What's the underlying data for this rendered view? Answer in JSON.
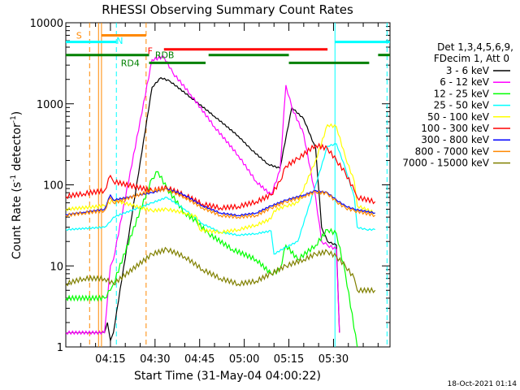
{
  "chart_data": {
    "type": "line",
    "title": "RHESSI Observing Summary Count Rates",
    "xlabel": "Start Time (31-May-04 04:00:22)",
    "ylabel": "Count Rate (s^-1 detector^-1)",
    "ylabel_main": "Count Rate (s",
    "ylabel_sup1": "-1",
    "ylabel_mid": " detector",
    "ylabel_sup2": "-1",
    "ylabel_end": ")",
    "yscale": "log",
    "ylim": [
      1,
      10000
    ],
    "xlim_min": [
      0,
      109
    ],
    "x_ticks": [
      {
        "min": 15,
        "label": "04:15"
      },
      {
        "min": 30,
        "label": "04:30"
      },
      {
        "min": 45,
        "label": "04:45"
      },
      {
        "min": 60,
        "label": "05:00"
      },
      {
        "min": 75,
        "label": "05:15"
      },
      {
        "min": 90,
        "label": "05:30"
      }
    ],
    "y_ticks": [
      {
        "value": 1,
        "label": "1"
      },
      {
        "value": 10,
        "label": "10"
      },
      {
        "value": 100,
        "label": "100"
      },
      {
        "value": 1000,
        "label": "1000"
      },
      {
        "value": 10000,
        "label": "10000"
      }
    ],
    "legend_header": [
      "Det 1,3,4,5,6,9,",
      "FDecim 1, Att 0"
    ],
    "series": [
      {
        "name": "3 - 6 keV",
        "color": "#000000",
        "points": [
          [
            0,
            1.5
          ],
          [
            13,
            1.5
          ],
          [
            14,
            2
          ],
          [
            15,
            1.2
          ],
          [
            16,
            1.5
          ],
          [
            29,
            1600
          ],
          [
            32,
            2100
          ],
          [
            35,
            1900
          ],
          [
            42,
            1200
          ],
          [
            50,
            700
          ],
          [
            58,
            400
          ],
          [
            62,
            280
          ],
          [
            68,
            180
          ],
          [
            72,
            160
          ],
          [
            76,
            900
          ],
          [
            80,
            650
          ],
          [
            84,
            280
          ],
          [
            86,
            30
          ],
          [
            88,
            20
          ],
          [
            91,
            18
          ],
          [
            92,
            1.5
          ]
        ]
      },
      {
        "name": "6 - 12 keV",
        "color": "#ff00ff",
        "points": [
          [
            0,
            1.5
          ],
          [
            13,
            1.5
          ],
          [
            15,
            10
          ],
          [
            16,
            12
          ],
          [
            29,
            3500
          ],
          [
            33,
            3800
          ],
          [
            36,
            2400
          ],
          [
            42,
            1300
          ],
          [
            50,
            520
          ],
          [
            58,
            230
          ],
          [
            64,
            110
          ],
          [
            69,
            75
          ],
          [
            72,
            150
          ],
          [
            74,
            1700
          ],
          [
            76,
            900
          ],
          [
            80,
            420
          ],
          [
            84,
            70
          ],
          [
            86,
            20
          ],
          [
            88,
            18
          ],
          [
            91,
            16
          ],
          [
            92,
            1.5
          ]
        ]
      },
      {
        "name": "12 - 25 keV",
        "color": "#00ff00",
        "points": [
          [
            0,
            4
          ],
          [
            13,
            4
          ],
          [
            15,
            5
          ],
          [
            16,
            6
          ],
          [
            29,
            120
          ],
          [
            31,
            145
          ],
          [
            34,
            90
          ],
          [
            40,
            45
          ],
          [
            44,
            35
          ],
          [
            48,
            25
          ],
          [
            56,
            16
          ],
          [
            64,
            12
          ],
          [
            69,
            8
          ],
          [
            72,
            9
          ],
          [
            74,
            18
          ],
          [
            78,
            12
          ],
          [
            84,
            18
          ],
          [
            88,
            28
          ],
          [
            91,
            25
          ],
          [
            94,
            8
          ],
          [
            98,
            1
          ]
        ]
      },
      {
        "name": "25 - 50 keV",
        "color": "#00ffff",
        "points": [
          [
            0,
            28
          ],
          [
            13,
            30
          ],
          [
            15,
            35
          ],
          [
            16,
            40
          ],
          [
            29,
            60
          ],
          [
            34,
            70
          ],
          [
            40,
            50
          ],
          [
            46,
            33
          ],
          [
            52,
            26
          ],
          [
            58,
            24
          ],
          [
            64,
            25
          ],
          [
            69,
            27
          ],
          [
            70,
            14
          ],
          [
            74,
            17
          ],
          [
            78,
            20
          ],
          [
            84,
            100
          ],
          [
            88,
            300
          ],
          [
            91,
            320
          ],
          [
            94,
            160
          ],
          [
            97,
            70
          ],
          [
            98,
            30
          ],
          [
            101,
            28
          ],
          [
            104,
            28
          ]
        ]
      },
      {
        "name": "50 - 100 keV",
        "color": "#ffff00",
        "points": [
          [
            0,
            50
          ],
          [
            13,
            55
          ],
          [
            16,
            65
          ],
          [
            29,
            48
          ],
          [
            34,
            50
          ],
          [
            40,
            45
          ],
          [
            44,
            40
          ],
          [
            45,
            28
          ],
          [
            52,
            26
          ],
          [
            58,
            28
          ],
          [
            64,
            32
          ],
          [
            69,
            38
          ],
          [
            70,
            48
          ],
          [
            74,
            55
          ],
          [
            78,
            60
          ],
          [
            84,
            200
          ],
          [
            88,
            550
          ],
          [
            91,
            520
          ],
          [
            94,
            220
          ],
          [
            97,
            110
          ],
          [
            98,
            55
          ],
          [
            104,
            45
          ]
        ]
      },
      {
        "name": "100 - 300 keV",
        "color": "#ff0000",
        "points": [
          [
            0,
            72
          ],
          [
            6,
            78
          ],
          [
            13,
            85
          ],
          [
            15,
            130
          ],
          [
            16,
            110
          ],
          [
            29,
            85
          ],
          [
            34,
            92
          ],
          [
            40,
            75
          ],
          [
            46,
            58
          ],
          [
            52,
            52
          ],
          [
            58,
            54
          ],
          [
            64,
            62
          ],
          [
            69,
            75
          ],
          [
            72,
            110
          ],
          [
            74,
            170
          ],
          [
            78,
            210
          ],
          [
            84,
            310
          ],
          [
            88,
            280
          ],
          [
            91,
            200
          ],
          [
            94,
            140
          ],
          [
            97,
            85
          ],
          [
            98,
            70
          ],
          [
            104,
            62
          ]
        ]
      },
      {
        "name": "300 - 800 keV",
        "color": "#0000ff",
        "points": [
          [
            0,
            43
          ],
          [
            6,
            46
          ],
          [
            13,
            50
          ],
          [
            15,
            75
          ],
          [
            16,
            65
          ],
          [
            29,
            80
          ],
          [
            34,
            90
          ],
          [
            40,
            75
          ],
          [
            46,
            55
          ],
          [
            52,
            45
          ],
          [
            58,
            42
          ],
          [
            64,
            45
          ],
          [
            69,
            55
          ],
          [
            74,
            65
          ],
          [
            80,
            75
          ],
          [
            84,
            85
          ],
          [
            88,
            80
          ],
          [
            91,
            65
          ],
          [
            94,
            55
          ],
          [
            97,
            50
          ],
          [
            104,
            45
          ]
        ]
      },
      {
        "name": "800 - 7000 keV",
        "color": "#ff8800",
        "points": [
          [
            0,
            42
          ],
          [
            6,
            45
          ],
          [
            13,
            48
          ],
          [
            15,
            70
          ],
          [
            16,
            60
          ],
          [
            29,
            85
          ],
          [
            34,
            88
          ],
          [
            40,
            70
          ],
          [
            46,
            52
          ],
          [
            52,
            42
          ],
          [
            58,
            40
          ],
          [
            64,
            42
          ],
          [
            69,
            52
          ],
          [
            74,
            62
          ],
          [
            80,
            72
          ],
          [
            84,
            82
          ],
          [
            88,
            78
          ],
          [
            91,
            62
          ],
          [
            94,
            52
          ],
          [
            97,
            48
          ],
          [
            104,
            42
          ]
        ]
      },
      {
        "name": "7000 - 15000 keV",
        "color": "#808000",
        "points": [
          [
            0,
            6
          ],
          [
            6,
            7
          ],
          [
            13,
            7
          ],
          [
            16,
            6
          ],
          [
            29,
            14
          ],
          [
            34,
            16
          ],
          [
            40,
            13
          ],
          [
            46,
            9
          ],
          [
            52,
            7
          ],
          [
            58,
            6
          ],
          [
            64,
            6.5
          ],
          [
            69,
            8
          ],
          [
            74,
            10
          ],
          [
            80,
            12
          ],
          [
            84,
            14
          ],
          [
            88,
            15
          ],
          [
            91,
            13
          ],
          [
            94,
            10
          ],
          [
            97,
            7
          ],
          [
            98,
            5
          ],
          [
            104,
            5
          ]
        ]
      }
    ],
    "annotations": [
      {
        "label": "S",
        "color": "#ff8800",
        "value": 7000,
        "min": 3.5
      },
      {
        "label": "N",
        "color": "#00ffff",
        "value": 6000,
        "min": 17
      },
      {
        "label": "F",
        "color": "#ff0000",
        "value": 4500,
        "min": 27.5
      },
      {
        "label": "RDB",
        "color": "#008000",
        "value": 4000,
        "min": 30
      },
      {
        "label": "RD4",
        "color": "#008000",
        "value": 3200,
        "min": 18.5
      }
    ],
    "flag_bars": [
      {
        "color": "#ff8800",
        "value": 7000,
        "from": 12,
        "to": 27
      },
      {
        "color": "#00ffff",
        "value": 5800,
        "from": 0,
        "to": 17
      },
      {
        "color": "#00ffff",
        "value": 5800,
        "from": 90.5,
        "to": 109
      },
      {
        "color": "#ff0000",
        "value": 4700,
        "from": 33,
        "to": 88
      },
      {
        "color": "#008000",
        "value": 4000,
        "from": 0,
        "to": 28
      },
      {
        "color": "#008000",
        "value": 4000,
        "from": 48,
        "to": 75
      },
      {
        "color": "#008000",
        "value": 4000,
        "from": 105,
        "to": 109
      },
      {
        "color": "#008000",
        "value": 3200,
        "from": 28,
        "to": 47
      },
      {
        "color": "#008000",
        "value": 3200,
        "from": 75,
        "to": 102
      }
    ],
    "vlines": [
      {
        "min": 8,
        "color": "#ff8800",
        "dashed": true
      },
      {
        "min": 11,
        "color": "#ff8800",
        "dashed": false
      },
      {
        "min": 12,
        "color": "#ff8800",
        "dashed": false
      },
      {
        "min": 17,
        "color": "#00ffff",
        "dashed": true
      },
      {
        "min": 27,
        "color": "#ff8800",
        "dashed": true
      },
      {
        "min": 90.5,
        "color": "#00ffff",
        "dashed": false
      },
      {
        "min": 108,
        "color": "#00ffff",
        "dashed": true
      }
    ],
    "footer_date": "18-Oct-2021 01:14"
  }
}
